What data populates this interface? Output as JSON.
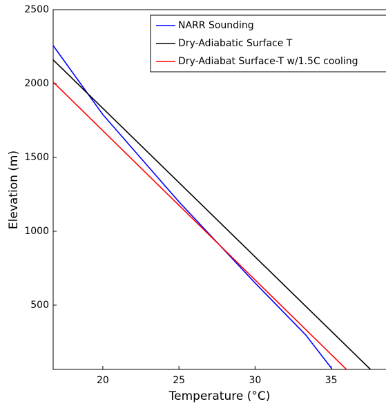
{
  "chart_data": {
    "type": "line",
    "x_label": "Temperature (°C)",
    "y_label": "Elevation (m)",
    "xlim": [
      16.74,
      38.6
    ],
    "ylim": [
      65,
      2500
    ],
    "xticks": [
      20,
      25,
      30,
      35
    ],
    "yticks": [
      500,
      1000,
      1500,
      2000,
      2500
    ],
    "legend": "upper right",
    "series": [
      {
        "name": "NARR Sounding",
        "color": "#0000ff",
        "x": [
          16.74,
          20,
          25,
          30,
          33.32,
          35.04
        ],
        "values": [
          2257,
          1790,
          1200,
          650,
          299,
          70
        ]
      },
      {
        "name": "Dry-Adiabatic Surface T",
        "color": "#000000",
        "x": [
          16.74,
          37.58
        ],
        "values": [
          2160,
          65
        ]
      },
      {
        "name": "Dry-Adiabat Surface-T w/1.5C cooling",
        "color": "#ff0000",
        "x": [
          16.74,
          36.0
        ],
        "values": [
          2010,
          65
        ]
      }
    ]
  }
}
